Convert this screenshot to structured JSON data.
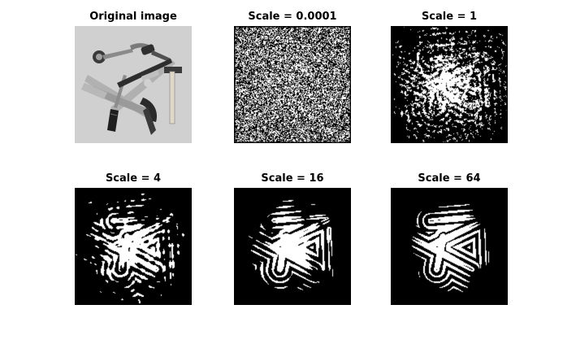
{
  "figure": {
    "panels": [
      {
        "title": "Original image",
        "kind": "photo",
        "scale": null
      },
      {
        "title": "Scale = 0.0001",
        "kind": "binary",
        "scale": 0.0001
      },
      {
        "title": "Scale = 1",
        "kind": "binary",
        "scale": 1
      },
      {
        "title": "Scale = 4",
        "kind": "binary",
        "scale": 4
      },
      {
        "title": "Scale = 16",
        "kind": "binary",
        "scale": 16
      },
      {
        "title": "Scale = 64",
        "kind": "binary",
        "scale": 64
      }
    ],
    "colors": {
      "background": "#ffffff",
      "ink": "#000000",
      "photo_background": "#c8c8c8"
    }
  }
}
